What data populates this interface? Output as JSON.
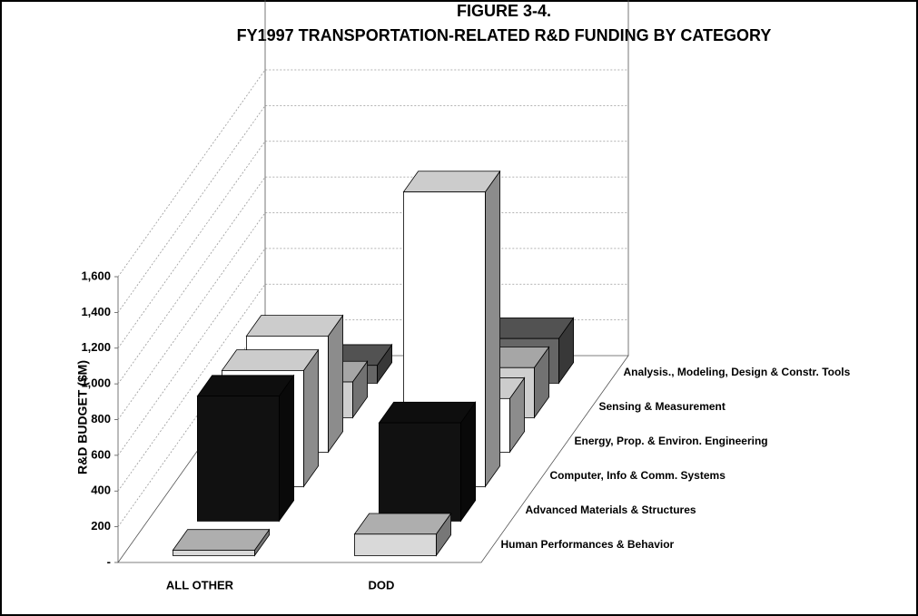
{
  "chart_data": {
    "type": "bar3d",
    "title": "FIGURE 3-4.",
    "subtitle": "FY1997 TRANSPORTATION-RELATED R&D FUNDING BY CATEGORY",
    "y_label": "R&D BUDGET ($M)",
    "categories": [
      "ALL OTHER",
      "DOD"
    ],
    "series": [
      {
        "name": "Human Performances & Behavior",
        "color": "#d9d9d9",
        "values": [
          30,
          120
        ]
      },
      {
        "name": "Advanced Materials & Structures",
        "color": "#111111",
        "values": [
          700,
          550
        ]
      },
      {
        "name": "Computer, Info & Comm. Systems",
        "color": "#ffffff",
        "values": [
          650,
          1650
        ]
      },
      {
        "name": "Energy, Prop. & Environ. Engineering",
        "color": "#ffffff",
        "values": [
          650,
          300
        ]
      },
      {
        "name": "Sensing & Measurement",
        "color": "#cfcfcf",
        "values": [
          200,
          280
        ]
      },
      {
        "name": "Analysis., Modeling, Design & Constr. Tools",
        "color": "#666666",
        "values": [
          100,
          250
        ]
      }
    ],
    "ylim": [
      0,
      1600
    ],
    "yticks": [
      {
        "value": 0,
        "label": "-"
      },
      200,
      400,
      600,
      800,
      {
        "value": 1000,
        "label": "1,000"
      },
      {
        "value": 1200,
        "label": "1,200"
      },
      {
        "value": 1400,
        "label": "1,400"
      },
      {
        "value": 1600,
        "label": "1,600"
      }
    ],
    "grid": true
  }
}
